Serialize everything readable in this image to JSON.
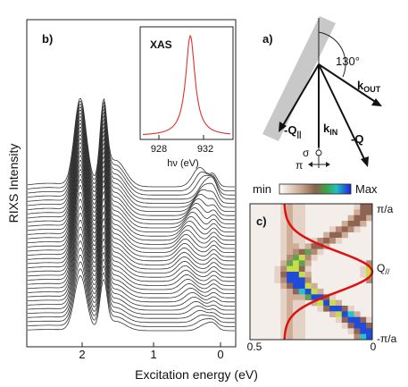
{
  "panel_b": {
    "label": "b)",
    "ylabel": "RIXS Intensity",
    "xlabel": "Excitation energy (eV)",
    "xticks": [
      "2",
      "1",
      "0"
    ],
    "inset": {
      "label": "XAS",
      "xlabel": "hν (eV)",
      "xticks": [
        "928",
        "932"
      ]
    }
  },
  "panel_a": {
    "label": "a)",
    "angle": "130°",
    "k_out": "k",
    "k_out_sub": "OUT",
    "k_in": "k",
    "k_in_sub": "IN",
    "q_par": "-Q",
    "q_par_sub": "||",
    "q": "-Q",
    "sigma": "σ",
    "pi": "π"
  },
  "panel_c": {
    "label": "c)",
    "colorbar_min": "min",
    "colorbar_max": "Max",
    "y_top": "π/a",
    "y_bottom": "-π/a",
    "q_label": "Q",
    "q_sub": "//",
    "x_left": "0.5",
    "x_right": "0"
  },
  "chart_data": [
    {
      "type": "line",
      "title": "",
      "xlabel": "Excitation energy (eV)",
      "ylabel": "RIXS Intensity",
      "xlim": [
        2.6,
        -0.35
      ],
      "x_ticks": [
        2,
        1,
        0
      ],
      "series_count": 36,
      "peaks_eV": [
        1.85,
        1.52
      ],
      "dispersive_feature_eV_range": [
        0.0,
        0.4
      ]
    },
    {
      "type": "line",
      "title": "XAS",
      "xlabel": "hν (eV)",
      "ylabel": "",
      "xlim": [
        926.5,
        933.5
      ],
      "x_ticks": [
        928,
        932
      ],
      "peak_x": 930.3,
      "series_color": "#e03030"
    },
    {
      "type": "heatmap",
      "title": "",
      "xlim": [
        0.5,
        0
      ],
      "ylim": [
        "-π/a",
        "π/a"
      ],
      "colorbar": [
        "min",
        "Max"
      ],
      "overlay_curve_color": "#e01010"
    }
  ],
  "colors": {
    "spectra": "#333333",
    "xas_curve": "#e03030",
    "dispersion_curve": "#e01010",
    "sample_plane": "#c8c8c8"
  }
}
